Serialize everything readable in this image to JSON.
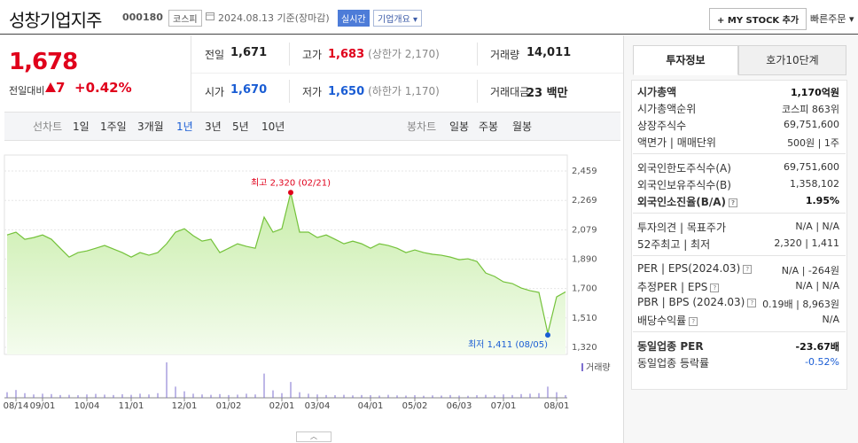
{
  "header": {
    "name": "성창기업지주",
    "code": "000180",
    "market": "코스피",
    "date": "2024.08.13",
    "basis": "기준(장마감)",
    "realtime": "실시간",
    "company_info": "기업개요",
    "mystock": "MY STOCK 추가",
    "quick_order": "빠른주문"
  },
  "quote": {
    "price": "1,678",
    "change_label": "전일대비",
    "change": "7",
    "change_pct": "+0.42%",
    "stats": [
      {
        "label": "전일",
        "value": "1,671"
      },
      {
        "label": "고가",
        "value": "1,683",
        "color": "#e0001b",
        "note": "(상한가 2,170)"
      },
      {
        "label": "거래량",
        "value": "14,011"
      },
      {
        "label": "시가",
        "value": "1,670",
        "color": "#1a5dd4"
      },
      {
        "label": "저가",
        "value": "1,650",
        "color": "#1a5dd4",
        "note": "(하한가 1,170)"
      },
      {
        "label": "거래대금",
        "value": "23 백만"
      }
    ]
  },
  "chart_tabs": {
    "line_label": "선차트",
    "line": [
      "1일",
      "1주일",
      "3개월",
      "1년",
      "3년",
      "5년",
      "10년"
    ],
    "active": 3,
    "candle_label": "봉차트",
    "candle": [
      "일봉",
      "주봉",
      "월봉"
    ]
  },
  "chart_data": {
    "type": "line",
    "color": "#74c23a",
    "grid": true,
    "categories": [
      null,
      "08/14",
      null,
      null,
      "09/01",
      null,
      null,
      null,
      null,
      "10/04",
      null,
      null,
      null,
      null,
      "11/01",
      null,
      null,
      null,
      null,
      null,
      "12/01",
      null,
      null,
      null,
      null,
      "01/02",
      null,
      null,
      null,
      null,
      null,
      "02/01",
      null,
      null,
      null,
      "03/04",
      null,
      null,
      null,
      null,
      null,
      "04/01",
      null,
      null,
      null,
      null,
      "05/02",
      null,
      null,
      null,
      null,
      "06/03",
      null,
      null,
      null,
      null,
      "07/01",
      null,
      null,
      null,
      null,
      null,
      "08/01",
      null
    ],
    "values": [
      2046,
      2064,
      2018,
      2029,
      2046,
      2018,
      1960,
      1903,
      1932,
      1943,
      1960,
      1978,
      1955,
      1932,
      1903,
      1932,
      1915,
      1932,
      1989,
      2064,
      2086,
      2041,
      2006,
      2018,
      1932,
      1960,
      1989,
      1972,
      1960,
      2161,
      2064,
      2086,
      2320,
      2064,
      2064,
      2029,
      2046,
      2018,
      1989,
      2006,
      1989,
      1960,
      1989,
      1978,
      1960,
      1932,
      1949,
      1932,
      1921,
      1915,
      1903,
      1886,
      1892,
      1875,
      1800,
      1778,
      1743,
      1732,
      1703,
      1686,
      1675,
      1411,
      1646,
      1678
    ],
    "ylim": [
      1320,
      2459
    ],
    "yticks": [
      {
        "value": 2459,
        "label": "2,459"
      },
      {
        "value": 2269,
        "label": "2,269"
      },
      {
        "value": 2079,
        "label": "2,079"
      },
      {
        "value": 1890,
        "label": "1,890"
      },
      {
        "value": 1700,
        "label": "1,700"
      },
      {
        "value": 1510,
        "label": "1,510"
      },
      {
        "value": 1320,
        "label": "1,320"
      }
    ],
    "max_label": "최고 2,320 (02/21)",
    "max_color": "#e0001b",
    "min_label": "최저 1,411 (08/05)",
    "min_color": "#1a5dd4",
    "volume": {
      "name": "거래량",
      "color": "#7d6fcf",
      "values": [
        30000,
        42000,
        25000,
        18000,
        22000,
        20000,
        15000,
        16000,
        14000,
        18000,
        21000,
        17000,
        15000,
        19000,
        16000,
        22000,
        18000,
        25000,
        190000,
        60000,
        35000,
        22000,
        18000,
        16000,
        20000,
        15000,
        17000,
        22000,
        18000,
        130000,
        40000,
        25000,
        85000,
        30000,
        22000,
        18000,
        15000,
        14000,
        16000,
        13000,
        15000,
        14000,
        12000,
        16000,
        13000,
        12000,
        14000,
        11000,
        13000,
        12000,
        15000,
        12000,
        11000,
        14000,
        16000,
        13000,
        18000,
        15000,
        20000,
        22000,
        25000,
        60000,
        30000,
        14011
      ]
    }
  },
  "invest_panel": {
    "tabs": [
      "투자정보",
      "호가10단계"
    ],
    "sections": [
      [
        {
          "label": "시가총액",
          "value": "1,170억원",
          "bold": true
        },
        {
          "label": "시가총액순위",
          "value": "코스피 863위"
        },
        {
          "label": "상장주식수",
          "value": "69,751,600"
        },
        {
          "label": "액면가 | 매매단위",
          "value": "500원 | 1주"
        }
      ],
      [
        {
          "label": "외국인한도주식수(A)",
          "value": "69,751,600"
        },
        {
          "label": "외국인보유주식수(B)",
          "value": "1,358,102"
        },
        {
          "label": "외국인소진율(B/A)",
          "value": "1.95%",
          "bold": true,
          "help": true
        }
      ],
      [
        {
          "label": "투자의견 | 목표주가",
          "value": "N/A | N/A"
        },
        {
          "label": "52주최고 | 최저",
          "value": "2,320 | 1,411"
        }
      ],
      [
        {
          "label": "PER | EPS(2024.03)",
          "value": "N/A | -264원",
          "help": true
        },
        {
          "label": "추정PER | EPS",
          "value": "N/A | N/A",
          "help": true
        },
        {
          "label": "PBR | BPS (2024.03)",
          "value": "0.19배 | 8,963원",
          "help": true
        },
        {
          "label": "배당수익률",
          "value": "N/A",
          "help": true
        }
      ],
      [
        {
          "label": "동일업종 PER",
          "value": "-23.67배",
          "bold": true
        },
        {
          "label": "동일업종 등락률",
          "value": "-0.52%",
          "color": "#1a5dd4"
        }
      ]
    ]
  }
}
